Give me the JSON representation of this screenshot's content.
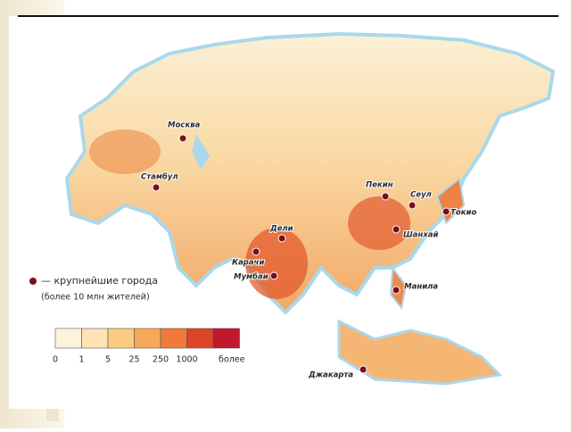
{
  "map": {
    "cities": [
      {
        "label": "Москва"
      },
      {
        "label": "Стамбул"
      },
      {
        "label": "Пекин"
      },
      {
        "label": "Сеул"
      },
      {
        "label": "Токио"
      },
      {
        "label": "Шанхай"
      },
      {
        "label": "Дели"
      },
      {
        "label": "Карачи"
      },
      {
        "label": "Мумбаи"
      },
      {
        "label": "Манила"
      },
      {
        "label": "Джакарта"
      }
    ]
  },
  "legend": {
    "title": "— крупнейшие города",
    "note": "(более 10 млн жителей)",
    "scale_labels": [
      "0",
      "1",
      "5",
      "25",
      "250",
      "1000",
      "более"
    ],
    "colors": [
      "#fdf3dc",
      "#fde3b4",
      "#fbcb82",
      "#f7a858",
      "#ef7a3a",
      "#de4428",
      "#c0192e"
    ]
  }
}
